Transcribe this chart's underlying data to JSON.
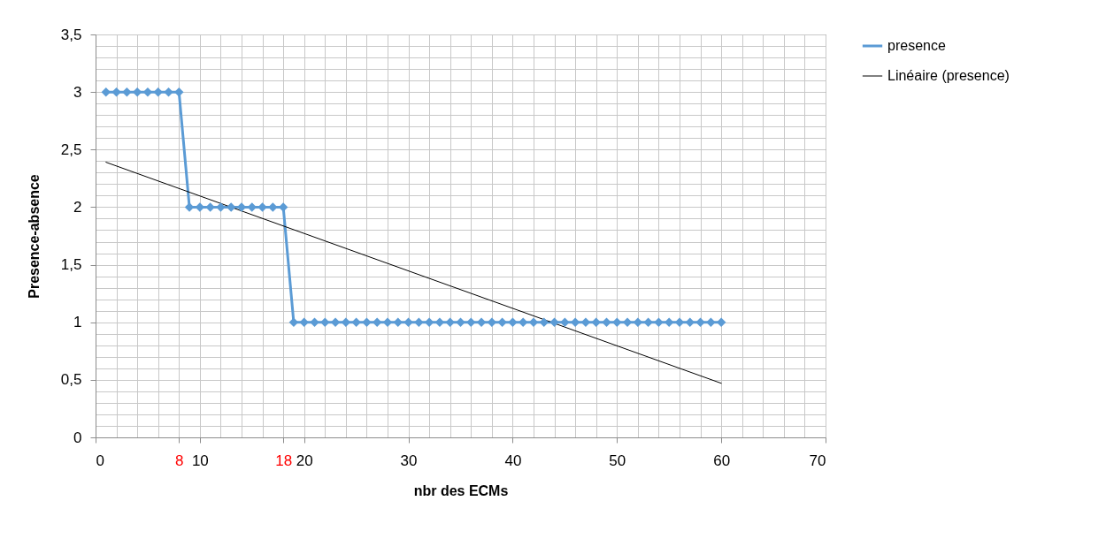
{
  "chart_data": {
    "type": "line",
    "xlabel": "nbr des ECMs",
    "ylabel": "Presence-absence",
    "xlim": [
      0,
      70
    ],
    "ylim": [
      0,
      3.5
    ],
    "xticks": [
      0,
      {
        "value": 8,
        "label": "8"
      },
      10,
      {
        "value": 18,
        "label": "18"
      },
      20,
      30,
      40,
      50,
      60,
      70
    ],
    "yticks": [
      0,
      {
        "value": 0.5,
        "label": "0,5"
      },
      1,
      {
        "value": 1.5,
        "label": "1,5"
      },
      2,
      {
        "value": 2.5,
        "label": "2,5"
      },
      3,
      {
        "value": 3.5,
        "label": "3,5"
      }
    ],
    "grid": true,
    "legend": "right",
    "marker": "diamond",
    "series": [
      {
        "name": "presence",
        "color": "#5b9bd5",
        "x": [
          1,
          2,
          3,
          4,
          5,
          6,
          7,
          8,
          9,
          10,
          11,
          12,
          13,
          14,
          15,
          16,
          17,
          18,
          19,
          20,
          21,
          22,
          23,
          24,
          25,
          26,
          27,
          28,
          29,
          30,
          31,
          32,
          33,
          34,
          35,
          36,
          37,
          38,
          39,
          40,
          41,
          42,
          43,
          44,
          45,
          46,
          47,
          48,
          49,
          50,
          51,
          52,
          53,
          54,
          55,
          56,
          57,
          58,
          59,
          60
        ],
        "values": [
          3,
          3,
          3,
          3,
          3,
          3,
          3,
          3,
          2,
          2,
          2,
          2,
          2,
          2,
          2,
          2,
          2,
          2,
          1,
          1,
          1,
          1,
          1,
          1,
          1,
          1,
          1,
          1,
          1,
          1,
          1,
          1,
          1,
          1,
          1,
          1,
          1,
          1,
          1,
          1,
          1,
          1,
          1,
          1,
          1,
          1,
          1,
          1,
          1,
          1,
          1,
          1,
          1,
          1,
          1,
          1,
          1,
          1,
          1,
          1
        ]
      },
      {
        "name": "Linéaire (presence)",
        "color": "#000000",
        "type": "line",
        "marker": "none",
        "x": [
          1,
          60
        ],
        "values": [
          2.39,
          0.47
        ]
      }
    ]
  }
}
